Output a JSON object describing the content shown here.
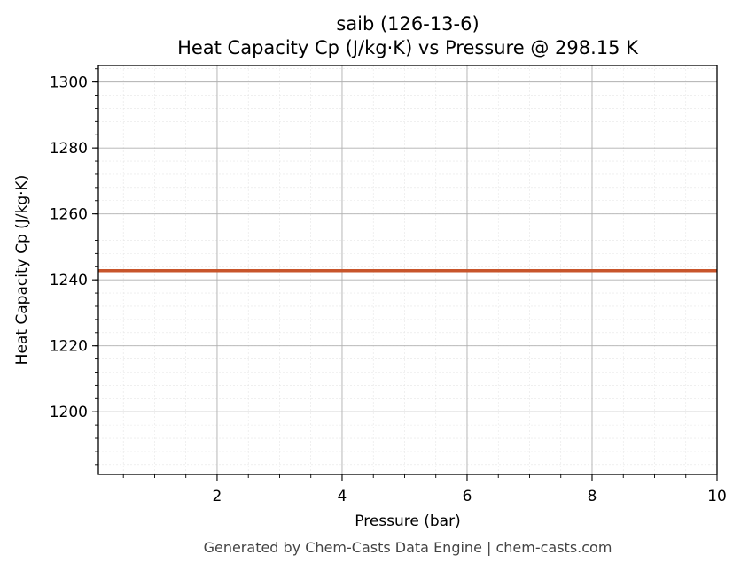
{
  "chart_data": {
    "type": "line",
    "title_line1": "saib (126-13-6)",
    "title_line2": "Heat Capacity Cp (J/kg·K) vs Pressure @ 298.15 K",
    "xlabel": "Pressure (bar)",
    "ylabel": "Heat Capacity Cp (J/kg·K)",
    "xlim": [
      0.1,
      10
    ],
    "ylim": [
      1181,
      1305
    ],
    "xticks": [
      2,
      4,
      6,
      8,
      10
    ],
    "yticks": [
      1200,
      1220,
      1240,
      1260,
      1280,
      1300
    ],
    "grid": true,
    "series": [
      {
        "x": [
          0.1,
          10
        ],
        "y": [
          1242.8,
          1242.8
        ],
        "color": "#c8552b"
      }
    ]
  },
  "footer": "Generated by Chem-Casts Data Engine | chem-casts.com"
}
